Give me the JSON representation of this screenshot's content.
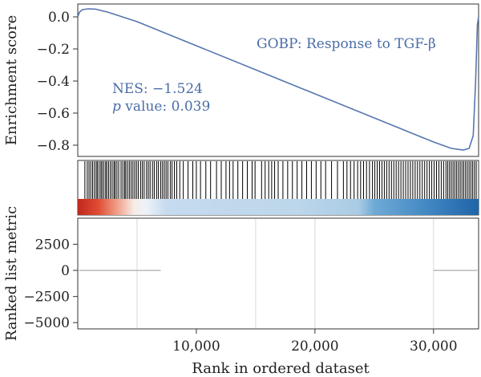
{
  "chart_data": {
    "type": "line",
    "gene_set": "GOBP: Response to TGF-β",
    "nes_label": "NES: −1.524",
    "pvalue_symbol": "p",
    "pvalue_text": " value: 0.039",
    "xlabel": "Rank in ordered dataset",
    "x_range": [
      0,
      33800
    ],
    "x_ticks": [
      {
        "value": 10000,
        "label": "10,000"
      },
      {
        "value": 20000,
        "label": "20,000"
      },
      {
        "value": 30000,
        "label": "30,000"
      }
    ],
    "enrichment": {
      "ylabel": "Enrichment score",
      "ylim": [
        -0.87,
        0.08
      ],
      "y_ticks": [
        {
          "value": 0.0,
          "label": "0.0"
        },
        {
          "value": -0.2,
          "label": "−0.2"
        },
        {
          "value": -0.4,
          "label": "−0.4"
        },
        {
          "value": -0.6,
          "label": "−0.6"
        },
        {
          "value": -0.8,
          "label": "−0.8"
        }
      ],
      "points": [
        [
          0,
          0
        ],
        [
          150,
          0.03
        ],
        [
          400,
          0.045
        ],
        [
          900,
          0.05
        ],
        [
          1500,
          0.048
        ],
        [
          2500,
          0.03
        ],
        [
          5000,
          -0.03
        ],
        [
          8000,
          -0.12
        ],
        [
          10000,
          -0.18
        ],
        [
          15000,
          -0.33
        ],
        [
          20000,
          -0.48
        ],
        [
          25000,
          -0.63
        ],
        [
          30000,
          -0.78
        ],
        [
          31500,
          -0.82
        ],
        [
          32500,
          -0.83
        ],
        [
          33000,
          -0.82
        ],
        [
          33350,
          -0.74
        ],
        [
          33550,
          -0.4
        ],
        [
          33700,
          -0.05
        ],
        [
          33800,
          0
        ]
      ]
    },
    "hits": [
      600,
      800,
      950,
      1100,
      1250,
      1400,
      1550,
      1650,
      1800,
      1950,
      2050,
      2200,
      2350,
      2450,
      2600,
      2750,
      2900,
      3050,
      3150,
      3300,
      3450,
      3650,
      3800,
      3950,
      4050,
      4200,
      4350,
      4500,
      4650,
      4800,
      4950,
      5100,
      5300,
      5450,
      5600,
      5800,
      5950,
      6100,
      6300,
      6450,
      6650,
      6800,
      7000,
      7150,
      7300,
      7450,
      7600,
      7800,
      7950,
      8150,
      8350,
      8600,
      8900,
      9300,
      9700,
      10000,
      10350,
      10800,
      11200,
      11700,
      12100,
      12500,
      12800,
      13100,
      13500,
      13900,
      14300,
      14700,
      14950,
      15500,
      15800,
      16100,
      16350,
      16600,
      16900,
      17300,
      17700,
      18100,
      18500,
      18900,
      19300,
      19700,
      20100,
      20500,
      20900,
      21400,
      21900,
      22400,
      22700,
      23000,
      23300,
      23600,
      23850,
      24100,
      24350,
      24600,
      24850,
      25050,
      25250,
      25450,
      25650,
      25850,
      26050,
      26250,
      26450,
      26650,
      26850,
      27050,
      27250,
      27450,
      27650,
      27850,
      28050,
      28250,
      28450,
      28650,
      28850,
      29050,
      29250,
      29450,
      29650,
      29850,
      30050,
      30250,
      30450,
      30650,
      30850,
      31050,
      31200,
      31350,
      31500,
      31650,
      31800,
      31950,
      32100,
      32250,
      32400,
      32550,
      32700,
      32850,
      33000,
      33150,
      33300,
      33450,
      33600
    ],
    "ranked_metric": {
      "ylabel": "Ranked list metric",
      "ylim": [
        -5600,
        5000
      ],
      "y_ticks": [
        {
          "value": 2500,
          "label": "2500"
        },
        {
          "value": 0,
          "label": "0"
        },
        {
          "value": -2500,
          "label": "−2500"
        },
        {
          "value": -5000,
          "label": "−5000"
        }
      ],
      "grid_x": [
        5000,
        15000,
        20000,
        30000
      ],
      "zero_segments": [
        [
          100,
          7000
        ],
        [
          30000,
          33700
        ]
      ]
    },
    "colors": {
      "es_line": "#5676b0",
      "annotation": "#4a6da7",
      "hit": "#000000",
      "heat_stops": [
        "#d73027",
        "#f4a582",
        "#f7f7f7",
        "#c6dbef",
        "#bcd6ea",
        "#6baed6",
        "#2171b5"
      ]
    }
  }
}
